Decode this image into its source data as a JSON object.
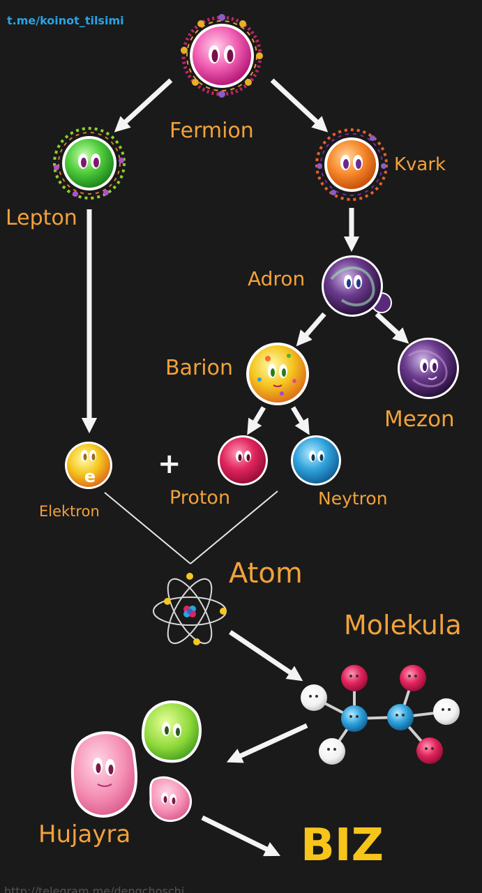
{
  "watermark": "t.me/koinot_tilsimi",
  "footer_url": "http://telegram.me/dengchoschi",
  "nodes": {
    "fermion": "Fermion",
    "lepton": "Lepton",
    "kvark": "Kvark",
    "adron": "Adron",
    "barion": "Barion",
    "mezon": "Mezon",
    "elektron": "Elektron",
    "elektron_symbol": "e",
    "proton": "Proton",
    "neytron": "Neytron",
    "atom": "Atom",
    "molekula": "Molekula",
    "hujayra": "Hujayra",
    "biz": "BIZ"
  },
  "plus_sign": "+",
  "colors": {
    "background": "#1a1a1a",
    "label": "#f2a23a",
    "biz": "#f7c51a",
    "watermark": "#29a3e6",
    "arrow": "#f4f4f4"
  }
}
